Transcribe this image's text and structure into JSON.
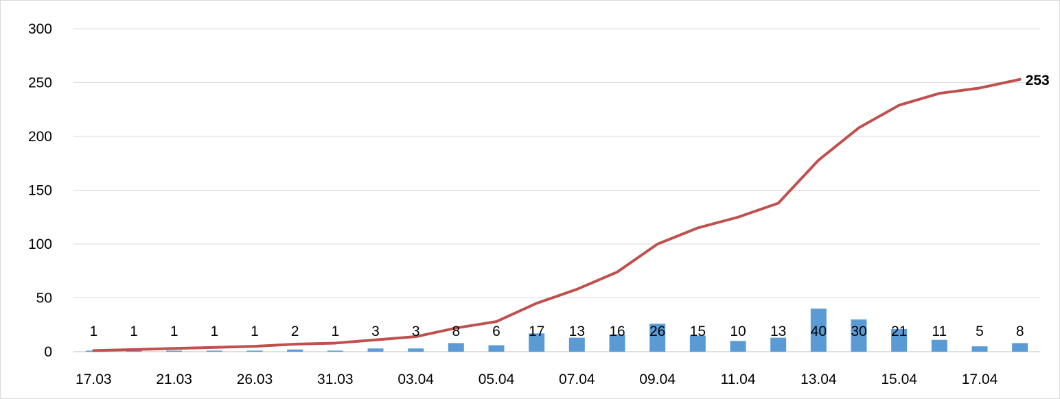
{
  "chart_data": {
    "type": "bar+line",
    "title": "",
    "xlabel": "",
    "ylabel": "",
    "ylim": [
      0,
      300
    ],
    "yticks": [
      "0",
      "50",
      "100",
      "150",
      "200",
      "250",
      "300"
    ],
    "grid": true,
    "x_tick_labels": [
      "17.03",
      "21.03",
      "26.03",
      "31.03",
      "03.04",
      "05.04",
      "07.04",
      "09.04",
      "11.04",
      "13.04",
      "15.04",
      "17.04"
    ],
    "bar_series": {
      "name": "",
      "color": "#5b9bd5",
      "values": [
        1,
        1,
        1,
        1,
        1,
        2,
        1,
        3,
        3,
        8,
        6,
        17,
        13,
        16,
        26,
        15,
        10,
        13,
        40,
        30,
        21,
        11,
        5,
        8
      ],
      "labels": [
        "1",
        "1",
        "1",
        "1",
        "1",
        "2",
        "1",
        "3",
        "3",
        "8",
        "6",
        "17",
        "13",
        "16",
        "26",
        "15",
        "10",
        "13",
        "40",
        "30",
        "21",
        "11",
        "5",
        "8"
      ]
    },
    "line_series": {
      "name": "",
      "color": "#c0504d",
      "values": [
        1,
        2,
        3,
        4,
        5,
        7,
        8,
        11,
        14,
        22,
        28,
        45,
        58,
        74,
        100,
        115,
        125,
        138,
        178,
        208,
        229,
        240,
        245,
        253
      ],
      "end_label": "253"
    }
  }
}
